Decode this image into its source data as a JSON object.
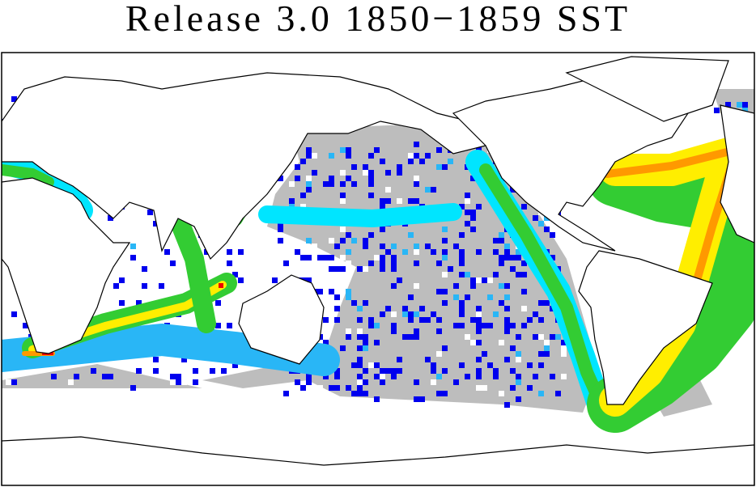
{
  "title": "Release 3.0 1850−1859 SST"
}
